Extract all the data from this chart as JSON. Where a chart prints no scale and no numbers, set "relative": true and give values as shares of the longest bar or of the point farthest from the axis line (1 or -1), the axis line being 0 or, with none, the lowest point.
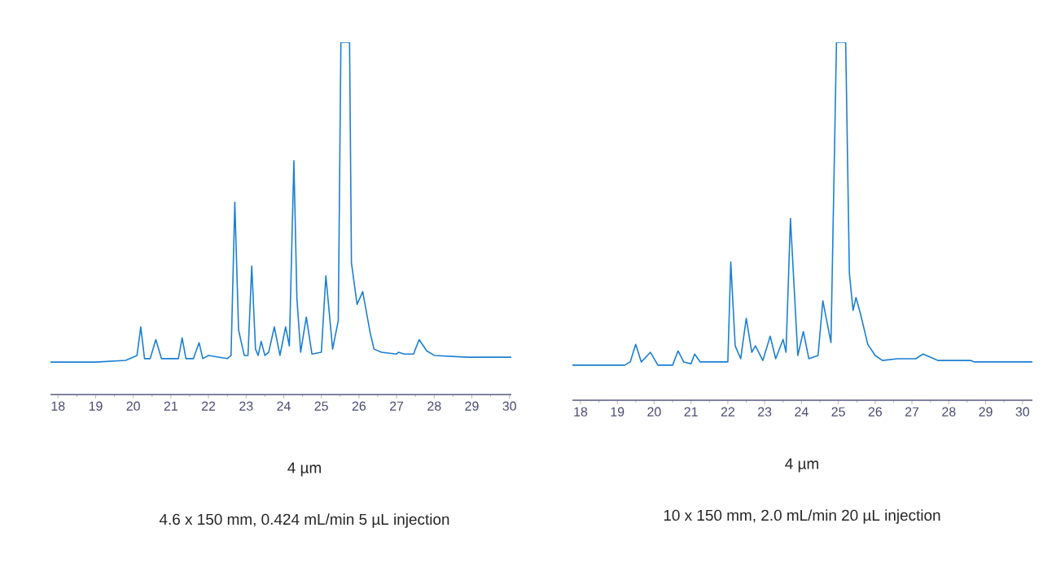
{
  "chart_data": [
    {
      "type": "line",
      "relative": true,
      "color": "#1a7fd4",
      "xlim": [
        17.8,
        30.05
      ],
      "xticks": [
        18,
        19,
        20,
        21,
        22,
        23,
        24,
        25,
        26,
        27,
        28,
        29,
        30
      ],
      "x": [
        17.8,
        19.0,
        19.8,
        20.0,
        20.1,
        20.2,
        20.3,
        20.45,
        20.6,
        20.75,
        21.1,
        21.2,
        21.3,
        21.4,
        21.6,
        21.75,
        21.85,
        22.0,
        22.5,
        22.6,
        22.7,
        22.8,
        22.95,
        23.05,
        23.15,
        23.25,
        23.32,
        23.4,
        23.5,
        23.6,
        23.75,
        23.9,
        24.05,
        24.15,
        24.27,
        24.35,
        24.45,
        24.6,
        24.75,
        25.0,
        25.12,
        25.3,
        25.45,
        25.52,
        25.75,
        25.8,
        25.95,
        26.1,
        26.3,
        26.4,
        26.6,
        27.0,
        27.05,
        27.2,
        27.45,
        27.6,
        27.8,
        28.0,
        28.9,
        30.05
      ],
      "values": [
        0.092,
        0.092,
        0.097,
        0.106,
        0.111,
        0.192,
        0.102,
        0.102,
        0.156,
        0.102,
        0.102,
        0.102,
        0.161,
        0.102,
        0.102,
        0.147,
        0.102,
        0.111,
        0.102,
        0.111,
        0.546,
        0.183,
        0.111,
        0.111,
        0.365,
        0.129,
        0.111,
        0.151,
        0.111,
        0.12,
        0.192,
        0.111,
        0.192,
        0.138,
        0.664,
        0.274,
        0.12,
        0.22,
        0.115,
        0.12,
        0.337,
        0.129,
        0.21,
        1,
        1,
        0.374,
        0.256,
        0.292,
        0.174,
        0.129,
        0.12,
        0.115,
        0.12,
        0.115,
        0.115,
        0.156,
        0.124,
        0.111,
        0.106,
        0.106
      ],
      "annotations": [
        "4 µm",
        "4.6 x 150 mm, 0.424 mL/min  5 µL injection"
      ]
    },
    {
      "type": "line",
      "relative": true,
      "color": "#1a7fd4",
      "xlim": [
        17.78,
        30.27
      ],
      "xticks": [
        18,
        19,
        20,
        21,
        22,
        23,
        24,
        25,
        26,
        27,
        28,
        29,
        30
      ],
      "x": [
        17.78,
        19.2,
        19.35,
        19.5,
        19.65,
        19.9,
        20.1,
        20.5,
        20.65,
        20.8,
        21.0,
        21.1,
        21.25,
        21.5,
        22.0,
        22.08,
        22.2,
        22.35,
        22.5,
        22.65,
        22.75,
        22.95,
        23.15,
        23.3,
        23.5,
        23.58,
        23.7,
        23.9,
        24.05,
        24.2,
        24.45,
        24.58,
        24.8,
        24.95,
        25.2,
        25.3,
        25.4,
        25.48,
        25.6,
        25.8,
        26.0,
        26.2,
        26.6,
        27.1,
        27.3,
        27.6,
        27.7,
        28.6,
        28.7,
        30.27
      ],
      "values": [
        0.098,
        0.098,
        0.107,
        0.156,
        0.107,
        0.134,
        0.098,
        0.098,
        0.138,
        0.107,
        0.102,
        0.129,
        0.107,
        0.107,
        0.107,
        0.386,
        0.152,
        0.116,
        0.229,
        0.134,
        0.152,
        0.111,
        0.179,
        0.116,
        0.17,
        0.134,
        0.508,
        0.125,
        0.192,
        0.116,
        0.125,
        0.278,
        0.161,
        1,
        1,
        0.355,
        0.251,
        0.287,
        0.242,
        0.156,
        0.125,
        0.111,
        0.116,
        0.116,
        0.129,
        0.116,
        0.111,
        0.111,
        0.107,
        0.107
      ],
      "annotations": [
        "4 µm",
        "10 x 150 mm, 2.0 mL/min    20 µL injection"
      ]
    }
  ]
}
